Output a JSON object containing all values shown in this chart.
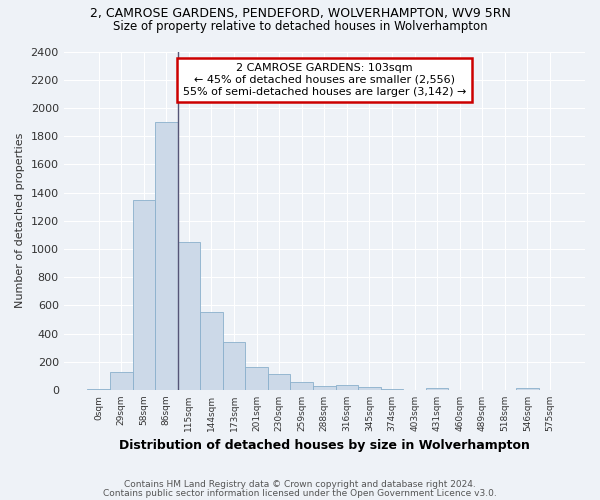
{
  "title_line1": "2, CAMROSE GARDENS, PENDEFORD, WOLVERHAMPTON, WV9 5RN",
  "title_line2": "Size of property relative to detached houses in Wolverhampton",
  "xlabel": "Distribution of detached houses by size in Wolverhampton",
  "ylabel": "Number of detached properties",
  "categories": [
    "0sqm",
    "29sqm",
    "58sqm",
    "86sqm",
    "115sqm",
    "144sqm",
    "173sqm",
    "201sqm",
    "230sqm",
    "259sqm",
    "288sqm",
    "316sqm",
    "345sqm",
    "374sqm",
    "403sqm",
    "431sqm",
    "460sqm",
    "489sqm",
    "518sqm",
    "546sqm",
    "575sqm"
  ],
  "values": [
    5,
    130,
    1350,
    1900,
    1050,
    550,
    340,
    165,
    110,
    55,
    25,
    35,
    20,
    5,
    0,
    15,
    0,
    0,
    0,
    15,
    0
  ],
  "bar_color": "#ccd9e8",
  "bar_edge_color": "#8ab0cc",
  "annotation_line1": "2 CAMROSE GARDENS: 103sqm",
  "annotation_line2": "← 45% of detached houses are smaller (2,556)",
  "annotation_line3": "55% of semi-detached houses are larger (3,142) →",
  "annotation_box_color": "#ffffff",
  "annotation_box_edge_color": "#cc0000",
  "property_line_x": 3.5,
  "ylim": [
    0,
    2400
  ],
  "yticks": [
    0,
    200,
    400,
    600,
    800,
    1000,
    1200,
    1400,
    1600,
    1800,
    2000,
    2200,
    2400
  ],
  "footer_line1": "Contains HM Land Registry data © Crown copyright and database right 2024.",
  "footer_line2": "Contains public sector information licensed under the Open Government Licence v3.0.",
  "bg_color": "#eef2f7",
  "grid_color": "#ffffff"
}
